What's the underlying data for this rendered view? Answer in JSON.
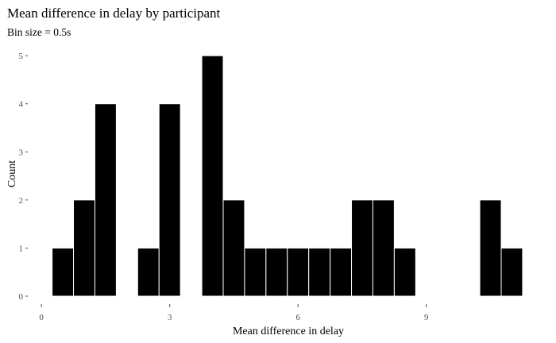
{
  "chart_data": {
    "type": "histogram",
    "title": "Mean difference in delay by participant",
    "subtitle": "Bin size = 0.5s",
    "xlabel": "Mean difference in delay",
    "ylabel": "Count",
    "bin_width": 0.5,
    "bins": [
      {
        "x0": 0.25,
        "x1": 0.75,
        "count": 1
      },
      {
        "x0": 0.75,
        "x1": 1.25,
        "count": 2
      },
      {
        "x0": 1.25,
        "x1": 1.75,
        "count": 4
      },
      {
        "x0": 1.75,
        "x1": 2.25,
        "count": 0
      },
      {
        "x0": 2.25,
        "x1": 2.75,
        "count": 1
      },
      {
        "x0": 2.75,
        "x1": 3.25,
        "count": 4
      },
      {
        "x0": 3.25,
        "x1": 3.75,
        "count": 0
      },
      {
        "x0": 3.75,
        "x1": 4.25,
        "count": 5
      },
      {
        "x0": 4.25,
        "x1": 4.75,
        "count": 2
      },
      {
        "x0": 4.75,
        "x1": 5.25,
        "count": 1
      },
      {
        "x0": 5.25,
        "x1": 5.75,
        "count": 1
      },
      {
        "x0": 5.75,
        "x1": 6.25,
        "count": 1
      },
      {
        "x0": 6.25,
        "x1": 6.75,
        "count": 1
      },
      {
        "x0": 6.75,
        "x1": 7.25,
        "count": 1
      },
      {
        "x0": 7.25,
        "x1": 7.75,
        "count": 2
      },
      {
        "x0": 7.75,
        "x1": 8.25,
        "count": 2
      },
      {
        "x0": 8.25,
        "x1": 8.75,
        "count": 1
      },
      {
        "x0": 8.75,
        "x1": 9.25,
        "count": 0
      },
      {
        "x0": 9.25,
        "x1": 9.75,
        "count": 0
      },
      {
        "x0": 9.75,
        "x1": 10.25,
        "count": 0
      },
      {
        "x0": 10.25,
        "x1": 10.75,
        "count": 2
      },
      {
        "x0": 10.75,
        "x1": 11.25,
        "count": 1
      }
    ],
    "x_ticks": [
      0,
      3,
      6,
      9
    ],
    "y_ticks": [
      0,
      1,
      2,
      3,
      4,
      5
    ],
    "xlim": [
      -0.3,
      11.4
    ],
    "ylim": [
      0,
      5.25
    ],
    "grid": false,
    "bar_color": "#000000",
    "bar_outline_color": "#ffffff"
  }
}
